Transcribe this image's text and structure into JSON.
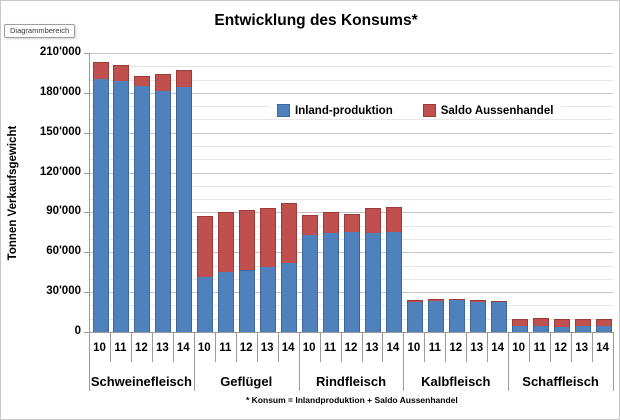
{
  "window": {
    "screentip": "Diagrammbereich"
  },
  "chart_data": {
    "type": "bar",
    "stacked": true,
    "title": "Entwicklung des Konsums*",
    "ylabel": "Tonnen Verkaufsgewicht",
    "footnote": "* Konsum = Inlandproduktion + Saldo Aussenhandel",
    "ylim": [
      0,
      210000
    ],
    "ytick_step": 30000,
    "minor_grid_step": 10000,
    "grid": "on",
    "legend_position": "inside-top-center",
    "ytick_labels": [
      "0",
      "30'000",
      "60'000",
      "90'000",
      "120'000",
      "150'000",
      "180'000",
      "210'000"
    ],
    "groups": [
      "Schweinefleisch",
      "Geflügel",
      "Rindfleisch",
      "Kalbfleisch",
      "Schaffleisch"
    ],
    "years": [
      "10",
      "11",
      "12",
      "13",
      "14"
    ],
    "group_size": 5,
    "series": [
      {
        "name": "Inland-produktion",
        "color": "#4F81BD",
        "values": [
          191000,
          190000,
          186000,
          182000,
          185500,
          42000,
          46000,
          47000,
          49500,
          52500,
          74000,
          75500,
          76000,
          75500,
          76000,
          23000,
          24000,
          24500,
          23500,
          23000,
          5000,
          5000,
          4500,
          5000,
          5000
        ]
      },
      {
        "name": "Saldo Aussenhandel",
        "color": "#C0504D",
        "values": [
          12000,
          11000,
          7000,
          12500,
          11500,
          45000,
          44000,
          44500,
          43500,
          45000,
          14000,
          14500,
          13000,
          17500,
          18000,
          1000,
          1000,
          500,
          500,
          500,
          5000,
          5500,
          5000,
          5000,
          5000
        ]
      }
    ]
  }
}
